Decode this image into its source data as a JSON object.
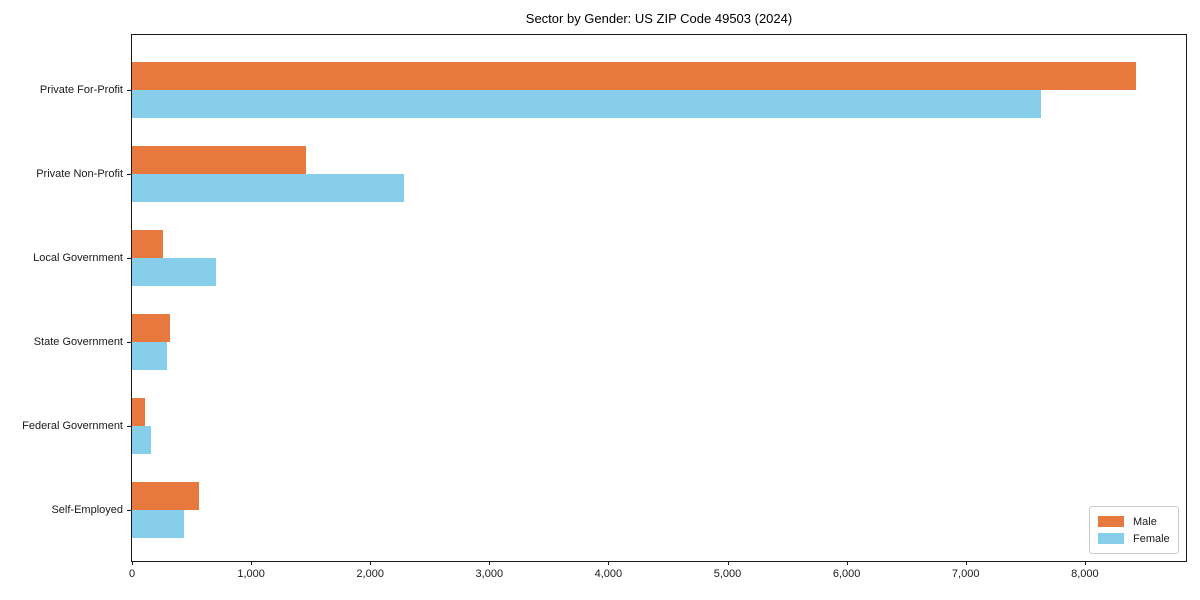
{
  "chart_data": {
    "type": "bar",
    "orientation": "horizontal",
    "title": "Sector by Gender: US ZIP Code 49503 (2024)",
    "categories": [
      "Private For-Profit",
      "Private Non-Profit",
      "Local Government",
      "State Government",
      "Federal Government",
      "Self-Employed"
    ],
    "series": [
      {
        "name": "Male",
        "color": "#e8793e",
        "values": [
          8430,
          1460,
          260,
          315,
          105,
          565
        ]
      },
      {
        "name": "Female",
        "color": "#87ceeb",
        "values": [
          7630,
          2280,
          705,
          295,
          155,
          440
        ]
      }
    ],
    "xlabel": "",
    "ylabel": "",
    "xlim": [
      0,
      8866
    ],
    "x_ticks": [
      0,
      1000,
      2000,
      3000,
      4000,
      5000,
      6000,
      7000,
      8000
    ],
    "x_tick_labels": [
      "0",
      "1,000",
      "2,000",
      "3,000",
      "4,000",
      "5,000",
      "6,000",
      "7,000",
      "8,000"
    ],
    "grid": false,
    "legend": {
      "position": "lower right",
      "entries": [
        "Male",
        "Female"
      ]
    }
  }
}
